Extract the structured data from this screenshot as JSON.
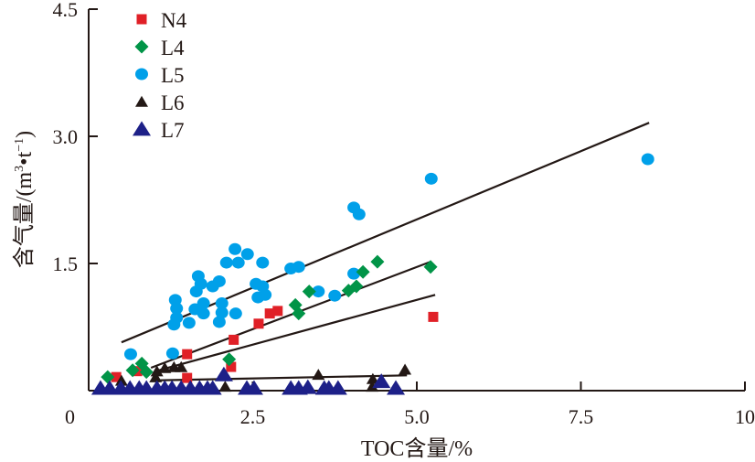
{
  "chart_data": {
    "type": "scatter",
    "title": "",
    "xlabel": "TOC含量/%",
    "ylabel": "含气量/(m³•t⁻¹)",
    "ylabel_parts": {
      "main": "含气量/(m",
      "sup1": "3",
      "mid": "•t",
      "sup2": "−1",
      "end": ")"
    },
    "xlim": [
      0,
      10
    ],
    "ylim": [
      0,
      4.5
    ],
    "x_ticks": [
      0,
      2.5,
      5.0,
      7.5,
      10
    ],
    "x_tick_labels": [
      "0",
      "2.5",
      "5.0",
      "7.5",
      "10"
    ],
    "y_ticks": [
      0,
      1.5,
      3.0,
      4.5
    ],
    "y_tick_labels": [
      "0",
      "1.5",
      "3.0",
      "4.5"
    ],
    "grid": false,
    "legend_position": "top-left",
    "series": [
      {
        "name": "N4",
        "marker": "square",
        "color": "#e02027",
        "points": [
          [
            0.42,
            0.16
          ],
          [
            0.74,
            0.23
          ],
          [
            1.5,
            0.43
          ],
          [
            1.5,
            0.15
          ],
          [
            2.17,
            0.28
          ],
          [
            2.21,
            0.6
          ],
          [
            2.59,
            0.79
          ],
          [
            2.76,
            0.91
          ],
          [
            2.88,
            0.94
          ],
          [
            5.25,
            0.87
          ]
        ],
        "fit_line": [
          [
            1.02,
            0.23
          ],
          [
            5.28,
            1.13
          ]
        ]
      },
      {
        "name": "L4",
        "marker": "diamond",
        "color": "#019447",
        "points": [
          [
            0.29,
            0.16
          ],
          [
            0.67,
            0.24
          ],
          [
            0.81,
            0.32
          ],
          [
            0.88,
            0.22
          ],
          [
            2.14,
            0.37
          ],
          [
            3.15,
            1.01
          ],
          [
            3.2,
            0.91
          ],
          [
            3.36,
            1.17
          ],
          [
            3.96,
            1.18
          ],
          [
            4.08,
            1.23
          ],
          [
            4.18,
            1.4
          ],
          [
            4.4,
            1.52
          ],
          [
            5.21,
            1.46
          ]
        ],
        "fit_line": [
          [
            0.95,
            0.27
          ],
          [
            5.21,
            1.52
          ]
        ]
      },
      {
        "name": "L5",
        "marker": "circle",
        "color": "#00a0e9",
        "points": [
          [
            0.64,
            0.43
          ],
          [
            1.28,
            0.44
          ],
          [
            1.3,
            0.78
          ],
          [
            1.32,
            1.07
          ],
          [
            1.34,
            0.97
          ],
          [
            1.34,
            0.86
          ],
          [
            1.53,
            0.8
          ],
          [
            1.62,
            0.96
          ],
          [
            1.64,
            1.17
          ],
          [
            1.67,
            1.35
          ],
          [
            1.71,
            1.26
          ],
          [
            1.75,
            1.03
          ],
          [
            1.75,
            0.91
          ],
          [
            1.89,
            1.23
          ],
          [
            1.99,
            1.29
          ],
          [
            1.99,
            0.81
          ],
          [
            2.03,
            1.03
          ],
          [
            2.03,
            0.92
          ],
          [
            2.1,
            1.51
          ],
          [
            2.23,
            1.67
          ],
          [
            2.24,
            0.91
          ],
          [
            2.28,
            1.51
          ],
          [
            2.42,
            1.61
          ],
          [
            2.55,
            1.26
          ],
          [
            2.58,
            1.1
          ],
          [
            2.65,
            1.51
          ],
          [
            2.65,
            1.23
          ],
          [
            2.69,
            1.13
          ],
          [
            3.08,
            1.44
          ],
          [
            3.2,
            1.46
          ],
          [
            3.5,
            1.17
          ],
          [
            3.75,
            1.12
          ],
          [
            4.04,
            2.16
          ],
          [
            4.04,
            1.38
          ],
          [
            4.12,
            2.08
          ],
          [
            5.22,
            2.5
          ],
          [
            8.52,
            2.73
          ]
        ],
        "fit_line": [
          [
            0.5,
            0.57
          ],
          [
            8.54,
            3.16
          ]
        ]
      },
      {
        "name": "L6",
        "marker": "triangle",
        "color": "#231815",
        "points": [
          [
            0.5,
            0.11
          ],
          [
            1.02,
            0.15
          ],
          [
            1.04,
            0.22
          ],
          [
            1.16,
            0.26
          ],
          [
            1.3,
            0.27
          ],
          [
            1.41,
            0.27
          ],
          [
            2.08,
            0.04
          ],
          [
            3.5,
            0.18
          ],
          [
            4.32,
            0.04
          ],
          [
            4.33,
            0.13
          ],
          [
            4.82,
            0.24
          ]
        ],
        "fit_line": [
          [
            0.95,
            0.12
          ],
          [
            4.85,
            0.18
          ]
        ]
      },
      {
        "name": "L7",
        "marker": "triangle-large",
        "color": "#1d2088",
        "points": [
          [
            0.18,
            0.02
          ],
          [
            0.32,
            0.02
          ],
          [
            0.49,
            0.02
          ],
          [
            0.63,
            0.02
          ],
          [
            0.77,
            0.02
          ],
          [
            0.88,
            0.02
          ],
          [
            1.04,
            0.02
          ],
          [
            1.16,
            0.02
          ],
          [
            1.27,
            0.02
          ],
          [
            1.41,
            0.02
          ],
          [
            1.55,
            0.02
          ],
          [
            1.69,
            0.02
          ],
          [
            1.81,
            0.02
          ],
          [
            1.89,
            0.02
          ],
          [
            2.06,
            0.18
          ],
          [
            2.41,
            0.02
          ],
          [
            2.52,
            0.02
          ],
          [
            3.08,
            0.02
          ],
          [
            3.2,
            0.02
          ],
          [
            3.34,
            0.03
          ],
          [
            3.59,
            0.02
          ],
          [
            3.66,
            0.02
          ],
          [
            3.8,
            0.02
          ],
          [
            4.46,
            0.1
          ],
          [
            4.68,
            0.02
          ]
        ],
        "fit_line": null
      }
    ]
  }
}
